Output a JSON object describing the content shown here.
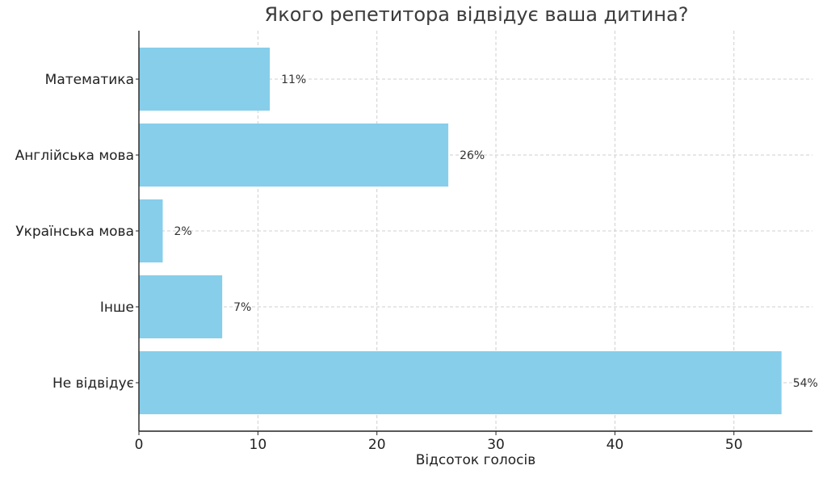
{
  "chart_data": {
    "type": "bar",
    "orientation": "horizontal",
    "title": "Якого репетитора відвідує ваша дитина?",
    "xlabel": "Відсоток голосів",
    "ylabel": "",
    "categories": [
      "Математика",
      "Англійська мова",
      "Українська мова",
      "Інше",
      "Не відвідує"
    ],
    "values": [
      11,
      26,
      2,
      7,
      54
    ],
    "data_labels": [
      "11%",
      "26%",
      "2%",
      "7%",
      "54%"
    ],
    "xlim": [
      0,
      56.6
    ],
    "xticks": [
      0,
      10,
      20,
      30,
      40,
      50
    ],
    "grid": true,
    "bar_color": "#87CEEB"
  }
}
